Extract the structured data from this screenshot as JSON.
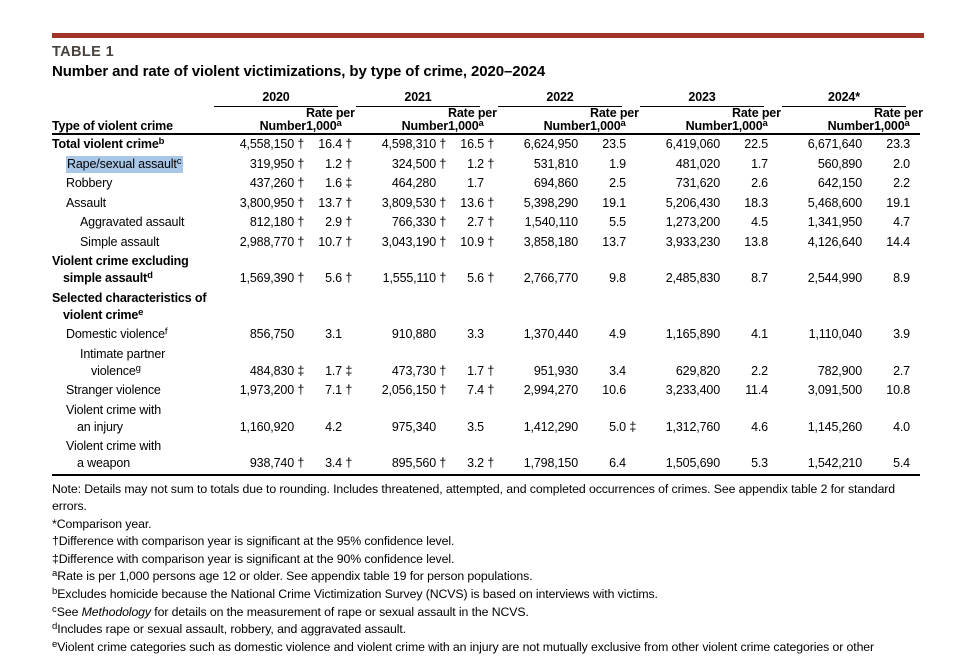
{
  "page": {
    "table_label": "TABLE 1",
    "title": "Number and rate of violent victimizations, by type of crime, 2020–2024"
  },
  "colors": {
    "accent_bar": "#a03527",
    "table_label_text": "#4a423c",
    "selection_highlight": "#a9c7e6",
    "rule": "#000000"
  },
  "table": {
    "col_header_label": "Type of violent crime",
    "year_groups": [
      "2020",
      "2021",
      "2022",
      "2023",
      "2024*"
    ],
    "sub_headers": {
      "number": "Number",
      "rate_line1": "Rate per",
      "rate_line2": "1,000",
      "rate_sup": "a"
    },
    "rows": [
      {
        "label_lines": [
          {
            "text": "Total violent crime",
            "sup": "b"
          }
        ],
        "indent": 0,
        "bold": true,
        "highlight": false,
        "values": [
          [
            "4,558,150",
            "†",
            "16.4",
            "†"
          ],
          [
            "4,598,310",
            "†",
            "16.5",
            "†"
          ],
          [
            "6,624,950",
            "",
            "23.5",
            ""
          ],
          [
            "6,419,060",
            "",
            "22.5",
            ""
          ],
          [
            "6,671,640",
            "",
            "23.3",
            ""
          ]
        ]
      },
      {
        "label_lines": [
          {
            "text": "Rape/sexual assault",
            "sup": "c"
          }
        ],
        "indent": 1,
        "bold": false,
        "highlight": true,
        "values": [
          [
            "319,950",
            "†",
            "1.2",
            "†"
          ],
          [
            "324,500",
            "†",
            "1.2",
            "†"
          ],
          [
            "531,810",
            "",
            "1.9",
            ""
          ],
          [
            "481,020",
            "",
            "1.7",
            ""
          ],
          [
            "560,890",
            "",
            "2.0",
            ""
          ]
        ]
      },
      {
        "label_lines": [
          {
            "text": "Robbery",
            "sup": ""
          }
        ],
        "indent": 1,
        "bold": false,
        "highlight": false,
        "values": [
          [
            "437,260",
            "†",
            "1.6",
            "‡"
          ],
          [
            "464,280",
            "",
            "1.7",
            ""
          ],
          [
            "694,860",
            "",
            "2.5",
            ""
          ],
          [
            "731,620",
            "",
            "2.6",
            ""
          ],
          [
            "642,150",
            "",
            "2.2",
            ""
          ]
        ]
      },
      {
        "label_lines": [
          {
            "text": "Assault",
            "sup": ""
          }
        ],
        "indent": 1,
        "bold": false,
        "highlight": false,
        "values": [
          [
            "3,800,950",
            "†",
            "13.7",
            "†"
          ],
          [
            "3,809,530",
            "†",
            "13.6",
            "†"
          ],
          [
            "5,398,290",
            "",
            "19.1",
            ""
          ],
          [
            "5,206,430",
            "",
            "18.3",
            ""
          ],
          [
            "5,468,600",
            "",
            "19.1",
            ""
          ]
        ]
      },
      {
        "label_lines": [
          {
            "text": "Aggravated assault",
            "sup": ""
          }
        ],
        "indent": 2,
        "bold": false,
        "highlight": false,
        "values": [
          [
            "812,180",
            "†",
            "2.9",
            "†"
          ],
          [
            "766,330",
            "†",
            "2.7",
            "†"
          ],
          [
            "1,540,110",
            "",
            "5.5",
            ""
          ],
          [
            "1,273,200",
            "",
            "4.5",
            ""
          ],
          [
            "1,341,950",
            "",
            "4.7",
            ""
          ]
        ]
      },
      {
        "label_lines": [
          {
            "text": "Simple assault",
            "sup": ""
          }
        ],
        "indent": 2,
        "bold": false,
        "highlight": false,
        "values": [
          [
            "2,988,770",
            "†",
            "10.7",
            "†"
          ],
          [
            "3,043,190",
            "†",
            "10.9",
            "†"
          ],
          [
            "3,858,180",
            "",
            "13.7",
            ""
          ],
          [
            "3,933,230",
            "",
            "13.8",
            ""
          ],
          [
            "4,126,640",
            "",
            "14.4",
            ""
          ]
        ]
      },
      {
        "label_lines": [
          {
            "text": "Violent crime excluding",
            "sup": ""
          },
          {
            "text": "simple assault",
            "sup": "d"
          }
        ],
        "indent": 0,
        "bold": true,
        "highlight": false,
        "values": [
          [
            "1,569,390",
            "†",
            "5.6",
            "†"
          ],
          [
            "1,555,110",
            "†",
            "5.6",
            "†"
          ],
          [
            "2,766,770",
            "",
            "9.8",
            ""
          ],
          [
            "2,485,830",
            "",
            "8.7",
            ""
          ],
          [
            "2,544,990",
            "",
            "8.9",
            ""
          ]
        ]
      },
      {
        "label_lines": [
          {
            "text": "Selected characteristics of",
            "sup": ""
          },
          {
            "text": "violent crime",
            "sup": "e"
          }
        ],
        "indent": 0,
        "bold": true,
        "highlight": false,
        "values": []
      },
      {
        "label_lines": [
          {
            "text": "Domestic violence",
            "sup": "f"
          }
        ],
        "indent": 1,
        "bold": false,
        "highlight": false,
        "values": [
          [
            "856,750",
            "",
            "3.1",
            ""
          ],
          [
            "910,880",
            "",
            "3.3",
            ""
          ],
          [
            "1,370,440",
            "",
            "4.9",
            ""
          ],
          [
            "1,165,890",
            "",
            "4.1",
            ""
          ],
          [
            "1,110,040",
            "",
            "3.9",
            ""
          ]
        ]
      },
      {
        "label_lines": [
          {
            "text": "Intimate partner",
            "sup": ""
          },
          {
            "text": "violence",
            "sup": "g"
          }
        ],
        "indent": 2,
        "bold": false,
        "highlight": false,
        "values": [
          [
            "484,830",
            "‡",
            "1.7",
            "‡"
          ],
          [
            "473,730",
            "†",
            "1.7",
            "†"
          ],
          [
            "951,930",
            "",
            "3.4",
            ""
          ],
          [
            "629,820",
            "",
            "2.2",
            ""
          ],
          [
            "782,900",
            "",
            "2.7",
            ""
          ]
        ]
      },
      {
        "label_lines": [
          {
            "text": "Stranger violence",
            "sup": ""
          }
        ],
        "indent": 1,
        "bold": false,
        "highlight": false,
        "values": [
          [
            "1,973,200",
            "†",
            "7.1",
            "†"
          ],
          [
            "2,056,150",
            "†",
            "7.4",
            "†"
          ],
          [
            "2,994,270",
            "",
            "10.6",
            ""
          ],
          [
            "3,233,400",
            "",
            "11.4",
            ""
          ],
          [
            "3,091,500",
            "",
            "10.8",
            ""
          ]
        ]
      },
      {
        "label_lines": [
          {
            "text": "Violent crime with",
            "sup": ""
          },
          {
            "text": "an injury",
            "sup": ""
          }
        ],
        "indent": 1,
        "bold": false,
        "highlight": false,
        "values": [
          [
            "1,160,920",
            "",
            "4.2",
            ""
          ],
          [
            "975,340",
            "",
            "3.5",
            ""
          ],
          [
            "1,412,290",
            "",
            "5.0",
            "‡"
          ],
          [
            "1,312,760",
            "",
            "4.6",
            ""
          ],
          [
            "1,145,260",
            "",
            "4.0",
            ""
          ]
        ]
      },
      {
        "label_lines": [
          {
            "text": "Violent crime with",
            "sup": ""
          },
          {
            "text": "a weapon",
            "sup": ""
          }
        ],
        "indent": 1,
        "bold": false,
        "highlight": false,
        "values": [
          [
            "938,740",
            "†",
            "3.4",
            "†"
          ],
          [
            "895,560",
            "†",
            "3.2",
            "†"
          ],
          [
            "1,798,150",
            "",
            "6.4",
            ""
          ],
          [
            "1,505,690",
            "",
            "5.3",
            ""
          ],
          [
            "1,542,210",
            "",
            "5.4",
            ""
          ]
        ]
      }
    ]
  },
  "footnotes": [
    {
      "marker": "",
      "sup": "",
      "parts": [
        {
          "text": "Note: Details may not sum to totals due to rounding. Includes threatened, attempted, and completed occurrences of crimes. See appendix table 2 for standard errors.",
          "italic": false
        }
      ]
    },
    {
      "marker": "*",
      "sup": "",
      "parts": [
        {
          "text": "Comparison year.",
          "italic": false
        }
      ]
    },
    {
      "marker": "†",
      "sup": "",
      "parts": [
        {
          "text": "Difference with comparison year is significant at the 95% confidence level.",
          "italic": false
        }
      ]
    },
    {
      "marker": "‡",
      "sup": "",
      "parts": [
        {
          "text": "Difference with comparison year is significant at the 90% confidence level.",
          "italic": false
        }
      ]
    },
    {
      "marker": "",
      "sup": "a",
      "parts": [
        {
          "text": "Rate is per 1,000 persons age 12 or older. See appendix table 19 for person populations.",
          "italic": false
        }
      ]
    },
    {
      "marker": "",
      "sup": "b",
      "parts": [
        {
          "text": "Excludes homicide because the National Crime Victimization Survey (NCVS) is based on interviews with victims.",
          "italic": false
        }
      ]
    },
    {
      "marker": "",
      "sup": "c",
      "parts": [
        {
          "text": "See ",
          "italic": false
        },
        {
          "text": "Methodology",
          "italic": true
        },
        {
          "text": " for details on the measurement of rape or sexual assault in the NCVS.",
          "italic": false
        }
      ]
    },
    {
      "marker": "",
      "sup": "d",
      "parts": [
        {
          "text": "Includes rape or sexual assault, robbery, and aggravated assault.",
          "italic": false
        }
      ]
    },
    {
      "marker": "",
      "sup": "e",
      "parts": [
        {
          "text": "Violent crime categories such as domestic violence and violent crime with an injury are not mutually exclusive from other violent crime categories or other",
          "italic": false
        }
      ]
    }
  ]
}
